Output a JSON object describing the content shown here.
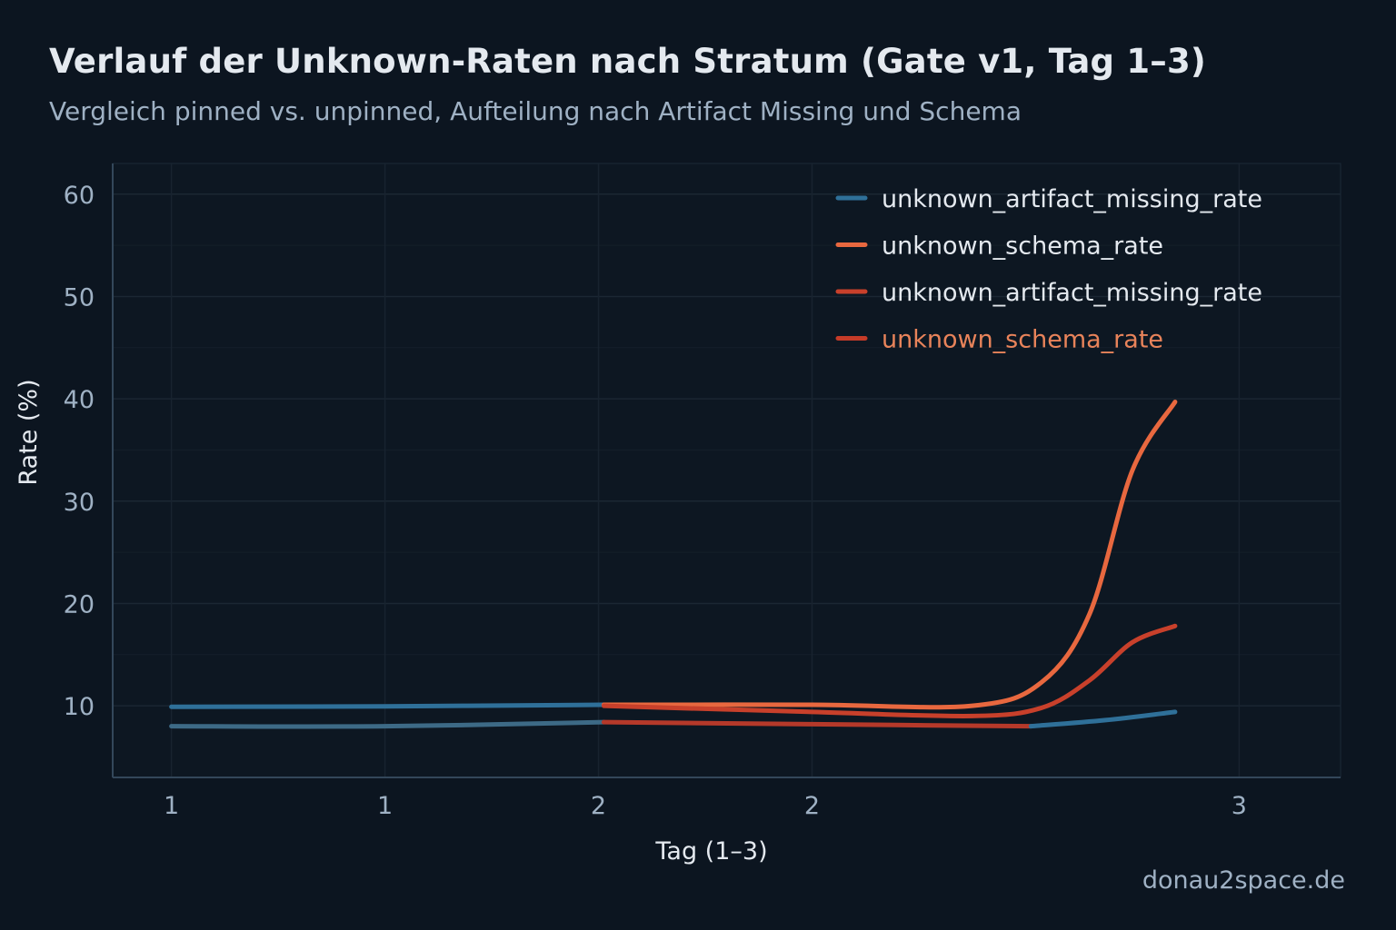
{
  "chart_data": {
    "type": "line",
    "title": "Verlauf der Unknown-Raten nach Stratum (Gate v1, Tag 1–3)",
    "subtitle": "Vergleich pinned vs. unpinned, Aufteilung nach Artifact Missing und Schema",
    "xlabel": "Tag (1–3)",
    "ylabel": "Rate (%)",
    "ylim": [
      3,
      63
    ],
    "xlim": [
      0.89,
      3.19
    ],
    "grid": true,
    "legend_placement": "top-right",
    "x_ticks": [
      {
        "value": 1.0,
        "label": "1"
      },
      {
        "value": 1.4,
        "label": "1"
      },
      {
        "value": 1.8,
        "label": "2"
      },
      {
        "value": 2.2,
        "label": "2"
      },
      {
        "value": 3.0,
        "label": "3"
      }
    ],
    "y_ticks": [
      10,
      20,
      30,
      40,
      50,
      60
    ],
    "legend": [
      {
        "label": "unknown_artifact_missing_rate",
        "color": "#2f7099",
        "text_color": "#e4e9ef"
      },
      {
        "label": "unknown_schema_rate",
        "color": "#e8683f",
        "text_color": "#e4e9ef"
      },
      {
        "label": "unknown_artifact_missing_rate",
        "color": "#c8402b",
        "text_color": "#e4e9ef"
      },
      {
        "label": "unknown_schema_rate",
        "color": "#c53b28",
        "text_color": "#e8835a"
      }
    ],
    "series": [
      {
        "legend_index": 0,
        "color": "#2f7099",
        "x": [
          1.0,
          1.4,
          1.81
        ],
        "y": [
          9.9,
          9.95,
          10.1
        ]
      },
      {
        "legend_index": 1,
        "color": "#e8683f",
        "x": [
          1.81,
          2.2,
          2.5,
          2.63,
          2.72,
          2.8,
          2.88
        ],
        "y": [
          10.1,
          10.1,
          10.0,
          12.3,
          19.0,
          33.0,
          39.7
        ]
      },
      {
        "legend_index": 2,
        "color": "#c8402b",
        "x": [
          1.81,
          2.2,
          2.5,
          2.63,
          2.72,
          2.8,
          2.88
        ],
        "y": [
          10.0,
          9.4,
          9.0,
          9.8,
          12.5,
          16.2,
          17.8
        ]
      },
      {
        "legend_index": 0,
        "color": "#3d6a86",
        "x": [
          1.0,
          1.4,
          1.81
        ],
        "y": [
          8.0,
          8.0,
          8.4
        ]
      },
      {
        "legend_index": 3,
        "color": "#b5392a",
        "x": [
          1.81,
          2.2,
          2.61
        ],
        "y": [
          8.4,
          8.2,
          8.0
        ]
      },
      {
        "legend_index": 0,
        "color": "#2f7099",
        "x": [
          2.61,
          2.75,
          2.88
        ],
        "y": [
          8.0,
          8.6,
          9.4
        ]
      }
    ],
    "credit": "donau2space.de"
  }
}
